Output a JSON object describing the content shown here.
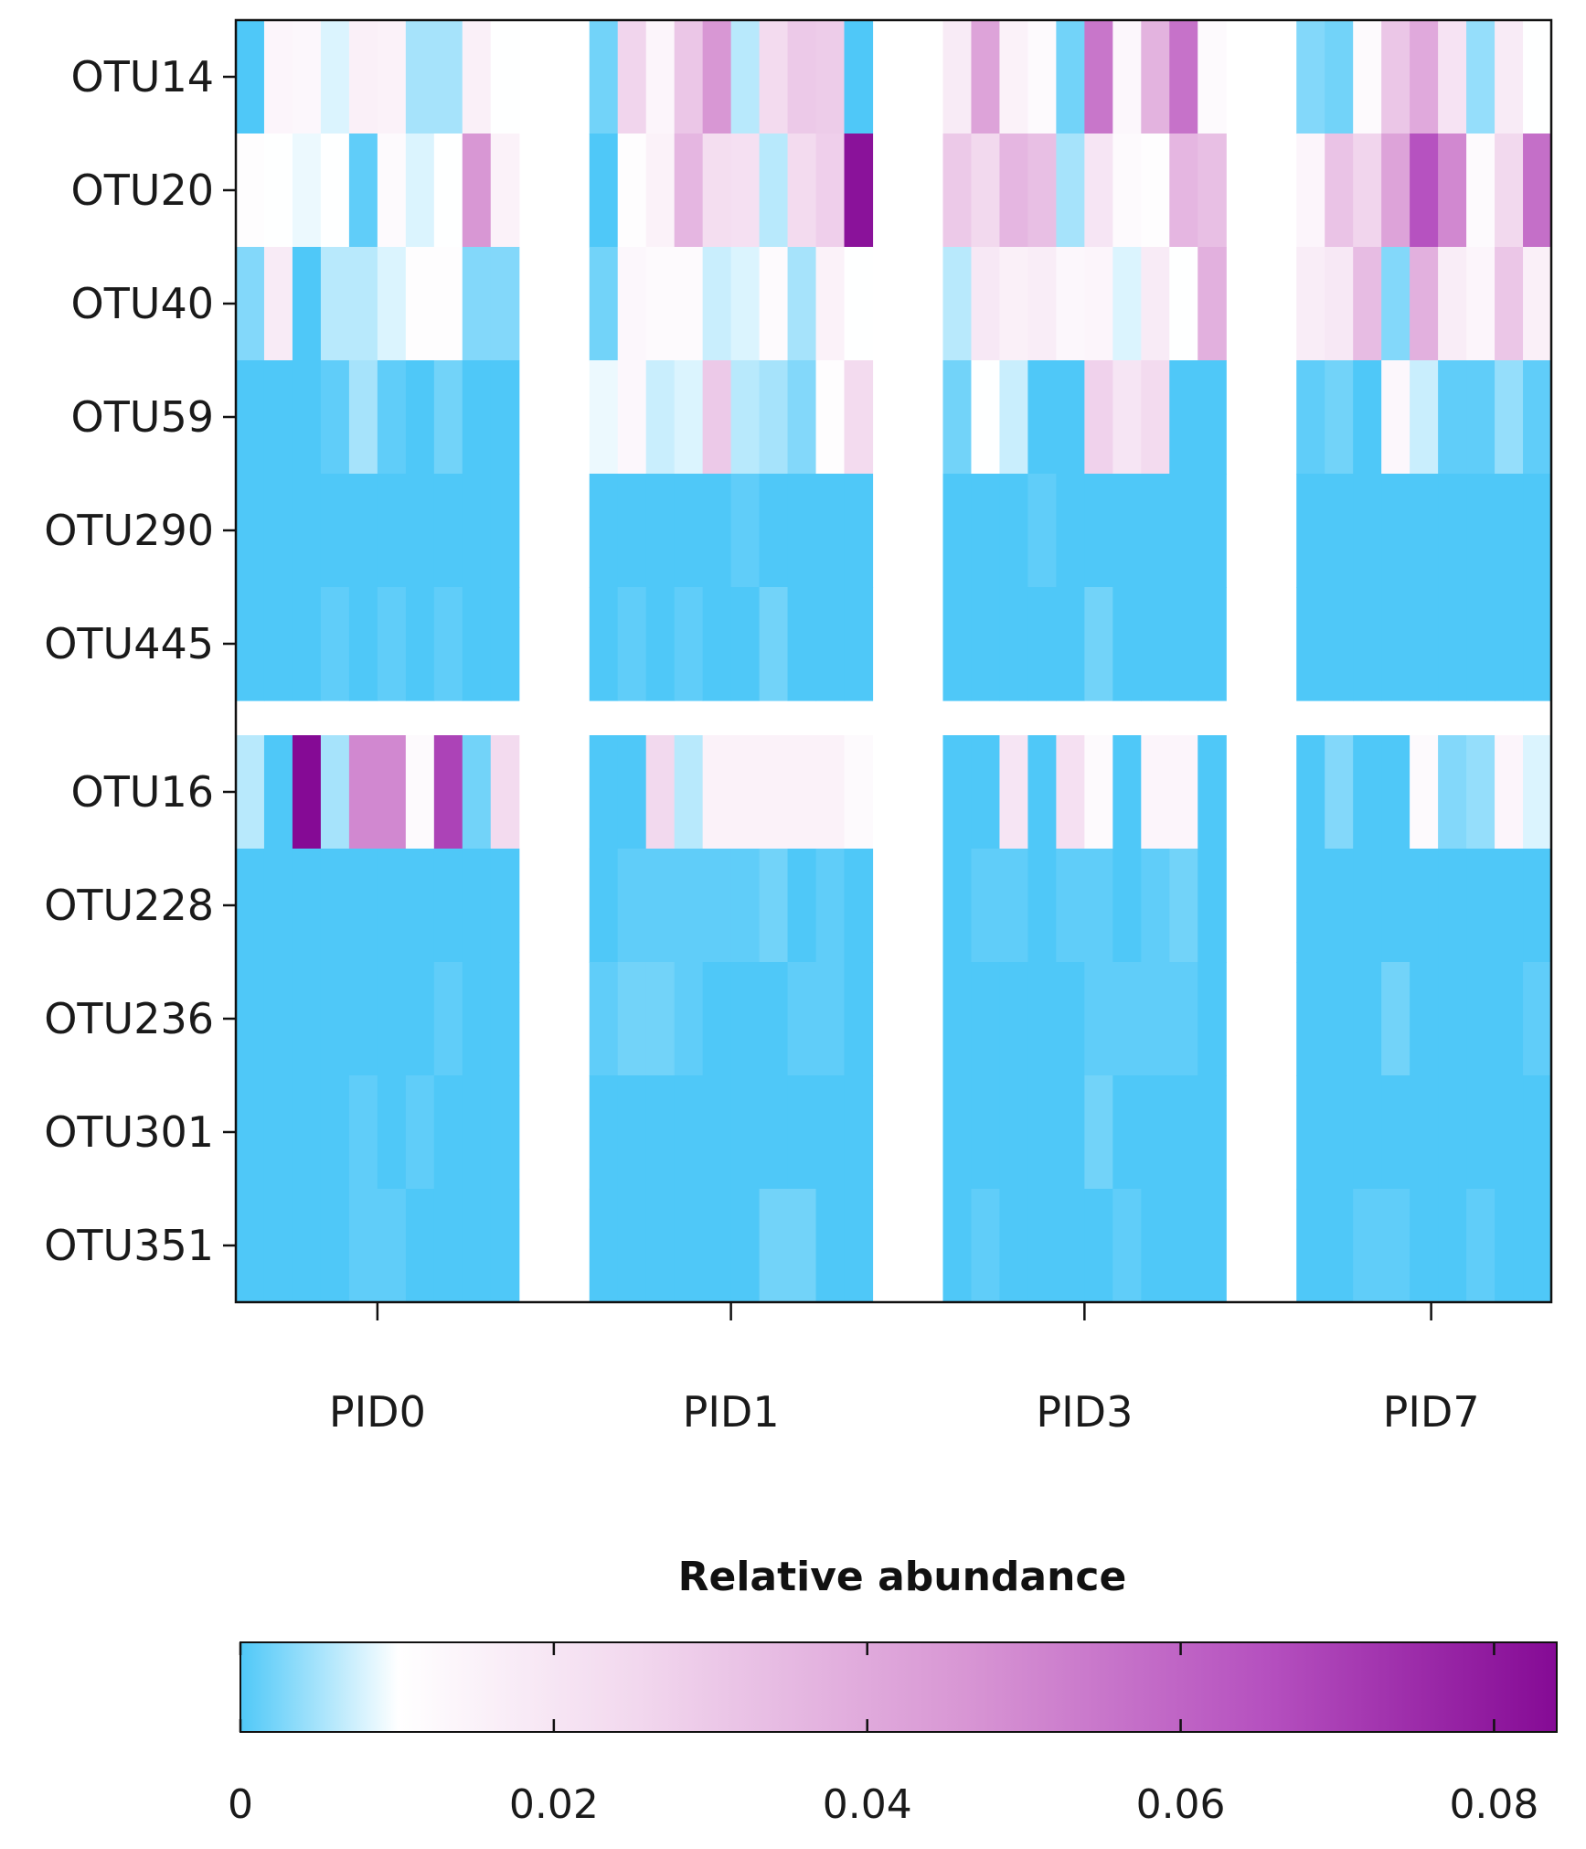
{
  "chart_data": {
    "type": "heatmap",
    "title": "",
    "colorbar": {
      "title": "Relative abundance",
      "min": 0,
      "max": 0.084,
      "ticks": [
        0,
        0.02,
        0.04,
        0.06,
        0.08
      ],
      "tick_labels": [
        "0",
        "0.02",
        "0.04",
        "0.06",
        "0.08"
      ],
      "colors": [
        "#4fc8f8",
        "#ffffff",
        "#f2d8ee",
        "#d896d4",
        "#b550bf",
        "#850a95"
      ]
    },
    "groups": [
      {
        "label": "PID0",
        "n": 10
      },
      {
        "label": "PID1",
        "n": 10
      },
      {
        "label": "PID3",
        "n": 10
      },
      {
        "label": "PID7",
        "n": 9
      }
    ],
    "row_blocks": [
      [
        "OTU14",
        "OTU20",
        "OTU40",
        "OTU59",
        "OTU290",
        "OTU445"
      ],
      [
        "OTU16",
        "OTU228",
        "OTU236",
        "OTU301",
        "OTU351"
      ]
    ],
    "rows": [
      {
        "otu": "OTU14",
        "values": [
          [
            0.0,
            0.014,
            0.013,
            0.008,
            0.016,
            0.015,
            0.005,
            0.005,
            0.016,
            0.01
          ],
          [
            0.002,
            0.026,
            0.014,
            0.031,
            0.046,
            0.006,
            0.024,
            0.03,
            0.029,
            0.0
          ],
          [
            0.018,
            0.042,
            0.015,
            0.012,
            0.002,
            0.055,
            0.013,
            0.037,
            0.056,
            0.012
          ],
          [
            0.003,
            0.002,
            0.012,
            0.031,
            0.04,
            0.021,
            0.004,
            0.018,
            0.01
          ]
        ]
      },
      {
        "otu": "OTU20",
        "values": [
          [
            0.011,
            0.01,
            0.009,
            0.01,
            0.001,
            0.012,
            0.008,
            0.01,
            0.046,
            0.015
          ],
          [
            0.0,
            0.011,
            0.015,
            0.036,
            0.023,
            0.022,
            0.006,
            0.024,
            0.028,
            0.082
          ],
          [
            0.03,
            0.025,
            0.036,
            0.033,
            0.005,
            0.02,
            0.012,
            0.011,
            0.036,
            0.033
          ],
          [
            0.014,
            0.032,
            0.026,
            0.042,
            0.065,
            0.05,
            0.012,
            0.025,
            0.057
          ]
        ]
      },
      {
        "otu": "OTU40",
        "values": [
          [
            0.003,
            0.018,
            0.0,
            0.006,
            0.006,
            0.008,
            0.011,
            0.011,
            0.003,
            0.003
          ],
          [
            0.002,
            0.013,
            0.012,
            0.012,
            0.007,
            0.008,
            0.012,
            0.005,
            0.015,
            0.01
          ],
          [
            0.006,
            0.019,
            0.016,
            0.017,
            0.013,
            0.014,
            0.008,
            0.018,
            0.01,
            0.038
          ],
          [
            0.017,
            0.019,
            0.034,
            0.003,
            0.038,
            0.017,
            0.014,
            0.031,
            0.016
          ]
        ]
      },
      {
        "otu": "OTU59",
        "values": [
          [
            0.0,
            0.0,
            0.0,
            0.001,
            0.005,
            0.001,
            0.0,
            0.002,
            0.0,
            0.0
          ],
          [
            0.009,
            0.013,
            0.007,
            0.008,
            0.03,
            0.006,
            0.005,
            0.003,
            0.011,
            0.024
          ],
          [
            0.002,
            0.01,
            0.007,
            0.0,
            0.0,
            0.027,
            0.02,
            0.024,
            0.0,
            0.0
          ],
          [
            0.001,
            0.002,
            0.0,
            0.013,
            0.007,
            0.001,
            0.001,
            0.004,
            0.001
          ]
        ]
      },
      {
        "otu": "OTU290",
        "values": [
          [
            0.0,
            0.0,
            0.0,
            0.0,
            0.0,
            0.0,
            0.0,
            0.0,
            0.0,
            0.0
          ],
          [
            0.0,
            0.0,
            0.0,
            0.0,
            0.0,
            0.001,
            0.0,
            0.0,
            0.0,
            0.0
          ],
          [
            0.0,
            0.0,
            0.0,
            0.001,
            0.0,
            0.0,
            0.0,
            0.0,
            0.0,
            0.0
          ],
          [
            0.0,
            0.0,
            0.0,
            0.0,
            0.0,
            0.0,
            0.0,
            0.0,
            0.0
          ]
        ]
      },
      {
        "otu": "OTU445",
        "values": [
          [
            0.0,
            0.0,
            0.0,
            0.001,
            0.0,
            0.001,
            0.0,
            0.001,
            0.0,
            0.0
          ],
          [
            0.0,
            0.001,
            0.0,
            0.001,
            0.0,
            0.0,
            0.002,
            0.0,
            0.0,
            0.0
          ],
          [
            0.0,
            0.0,
            0.0,
            0.0,
            0.0,
            0.002,
            0.0,
            0.0,
            0.0,
            0.0
          ],
          [
            0.0,
            0.0,
            0.0,
            0.0,
            0.0,
            0.0,
            0.0,
            0.0,
            0.0
          ]
        ]
      },
      {
        "otu": "OTU16",
        "values": [
          [
            0.006,
            0.0,
            0.084,
            0.005,
            0.05,
            0.05,
            0.012,
            0.069,
            0.002,
            0.024
          ],
          [
            0.0,
            0.0,
            0.025,
            0.006,
            0.015,
            0.015,
            0.015,
            0.015,
            0.015,
            0.012
          ],
          [
            0.0,
            0.0,
            0.02,
            0.0,
            0.022,
            0.012,
            0.0,
            0.014,
            0.014,
            0.0
          ],
          [
            0.0,
            0.003,
            0.0,
            0.0,
            0.012,
            0.003,
            0.004,
            0.014,
            0.008
          ]
        ]
      },
      {
        "otu": "OTU228",
        "values": [
          [
            0.0,
            0.0,
            0.0,
            0.0,
            0.0,
            0.0,
            0.0,
            0.0,
            0.0,
            0.0
          ],
          [
            0.0,
            0.001,
            0.001,
            0.001,
            0.001,
            0.001,
            0.002,
            0.0,
            0.001,
            0.0
          ],
          [
            0.0,
            0.001,
            0.001,
            0.0,
            0.001,
            0.001,
            0.0,
            0.001,
            0.002,
            0.0
          ],
          [
            0.0,
            0.0,
            0.0,
            0.0,
            0.0,
            0.0,
            0.0,
            0.0,
            0.0
          ]
        ]
      },
      {
        "otu": "OTU236",
        "values": [
          [
            0.0,
            0.0,
            0.0,
            0.0,
            0.0,
            0.0,
            0.0,
            0.001,
            0.0,
            0.0
          ],
          [
            0.001,
            0.002,
            0.002,
            0.001,
            0.0,
            0.0,
            0.0,
            0.001,
            0.001,
            0.0
          ],
          [
            0.0,
            0.0,
            0.0,
            0.0,
            0.0,
            0.001,
            0.001,
            0.001,
            0.001,
            0.0
          ],
          [
            0.0,
            0.0,
            0.0,
            0.002,
            0.0,
            0.0,
            0.0,
            0.0,
            0.001
          ]
        ]
      },
      {
        "otu": "OTU301",
        "values": [
          [
            0.0,
            0.0,
            0.0,
            0.0,
            0.001,
            0.0,
            0.001,
            0.0,
            0.0,
            0.0
          ],
          [
            0.0,
            0.0,
            0.0,
            0.0,
            0.0,
            0.0,
            0.0,
            0.0,
            0.0,
            0.0
          ],
          [
            0.0,
            0.0,
            0.0,
            0.0,
            0.0,
            0.002,
            0.0,
            0.0,
            0.0,
            0.0
          ],
          [
            0.0,
            0.0,
            0.0,
            0.0,
            0.0,
            0.0,
            0.0,
            0.0,
            0.0
          ]
        ]
      },
      {
        "otu": "OTU351",
        "values": [
          [
            0.0,
            0.0,
            0.0,
            0.0,
            0.001,
            0.001,
            0.0,
            0.0,
            0.0,
            0.0
          ],
          [
            0.0,
            0.0,
            0.0,
            0.0,
            0.0,
            0.0,
            0.002,
            0.002,
            0.0,
            0.0
          ],
          [
            0.0,
            0.001,
            0.0,
            0.0,
            0.0,
            0.0,
            0.001,
            0.0,
            0.0,
            0.0
          ],
          [
            0.0,
            0.0,
            0.001,
            0.001,
            0.0,
            0.0,
            0.001,
            0.0,
            0.0
          ]
        ]
      }
    ]
  }
}
